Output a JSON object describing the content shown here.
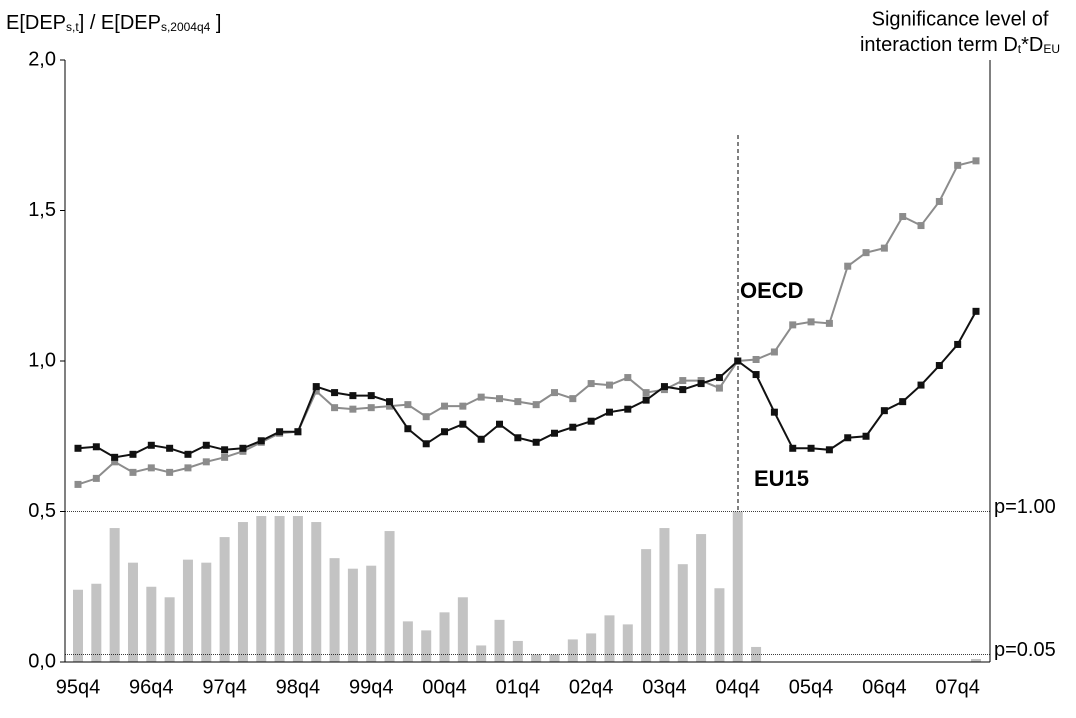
{
  "chart_data": {
    "type": "line",
    "ylabel": [
      "E[DEP",
      "s,t",
      "] / E[DEP",
      "s,2004q4",
      " ]"
    ],
    "y2label": [
      "Significance level of",
      "interaction term D",
      "t",
      "*D",
      "EU"
    ],
    "categories": [
      "95q4",
      null,
      null,
      null,
      "96q4",
      null,
      null,
      null,
      "97q4",
      null,
      null,
      null,
      "98q4",
      null,
      null,
      null,
      "99q4",
      null,
      null,
      null,
      "00q4",
      null,
      null,
      null,
      "01q4",
      null,
      null,
      null,
      "02q4",
      null,
      null,
      null,
      "03q4",
      null,
      null,
      null,
      "04q4",
      null,
      null,
      null,
      "05q4",
      null,
      null,
      null,
      "06q4",
      null,
      null,
      null,
      "07q4",
      null
    ],
    "ylim": [
      0,
      2
    ],
    "yticks": [
      {
        "value": 0,
        "label": "0,0"
      },
      {
        "value": 0.5,
        "label": "0,5"
      },
      {
        "value": 1,
        "label": "1,0"
      },
      {
        "value": 1.5,
        "label": "1,5"
      },
      {
        "value": 2,
        "label": "2,0"
      }
    ],
    "y2lim": [
      0,
      4
    ],
    "y2ticks": [
      {
        "value": 0.05,
        "label": "p=0.05"
      },
      {
        "value": 1,
        "label": "p=1.00"
      }
    ],
    "series": [
      {
        "name": "OECD",
        "color": "#8c8c8c",
        "values": [
          0.59,
          0.61,
          0.665,
          0.63,
          0.645,
          0.63,
          0.645,
          0.665,
          0.68,
          0.7,
          0.73,
          0.76,
          0.765,
          0.9,
          0.845,
          0.84,
          0.845,
          0.85,
          0.855,
          0.815,
          0.85,
          0.85,
          0.88,
          0.875,
          0.865,
          0.855,
          0.895,
          0.875,
          0.925,
          0.92,
          0.945,
          0.895,
          0.905,
          0.935,
          0.935,
          0.91,
          1.0,
          1.005,
          1.03,
          1.12,
          1.13,
          1.125,
          1.315,
          1.36,
          1.375,
          1.48,
          1.45,
          1.53,
          1.65,
          1.665
        ]
      },
      {
        "name": "EU15",
        "color": "#111111",
        "values": [
          0.71,
          0.715,
          0.68,
          0.69,
          0.72,
          0.71,
          0.69,
          0.72,
          0.705,
          0.71,
          0.735,
          0.765,
          0.765,
          0.915,
          0.895,
          0.885,
          0.885,
          0.865,
          0.775,
          0.725,
          0.765,
          0.79,
          0.74,
          0.79,
          0.745,
          0.73,
          0.76,
          0.78,
          0.8,
          0.83,
          0.84,
          0.87,
          0.915,
          0.905,
          0.925,
          0.945,
          1.0,
          0.955,
          0.83,
          0.71,
          0.71,
          0.705,
          0.745,
          0.75,
          0.835,
          0.865,
          0.92,
          0.985,
          1.055,
          1.165
        ]
      }
    ],
    "bars": {
      "axis": "y2",
      "color": "#c3c3c3",
      "values": [
        0.48,
        0.52,
        0.89,
        0.66,
        0.5,
        0.43,
        0.68,
        0.66,
        0.83,
        0.93,
        0.97,
        0.97,
        0.97,
        0.93,
        0.69,
        0.62,
        0.64,
        0.87,
        0.27,
        0.21,
        0.33,
        0.43,
        0.11,
        0.28,
        0.14,
        0.05,
        0.05,
        0.15,
        0.19,
        0.31,
        0.25,
        0.75,
        0.89,
        0.65,
        0.85,
        0.49,
        1.0,
        0.1,
        0,
        0,
        0,
        0,
        0,
        0,
        0,
        0,
        0,
        0,
        0,
        0.02
      ]
    }
  }
}
